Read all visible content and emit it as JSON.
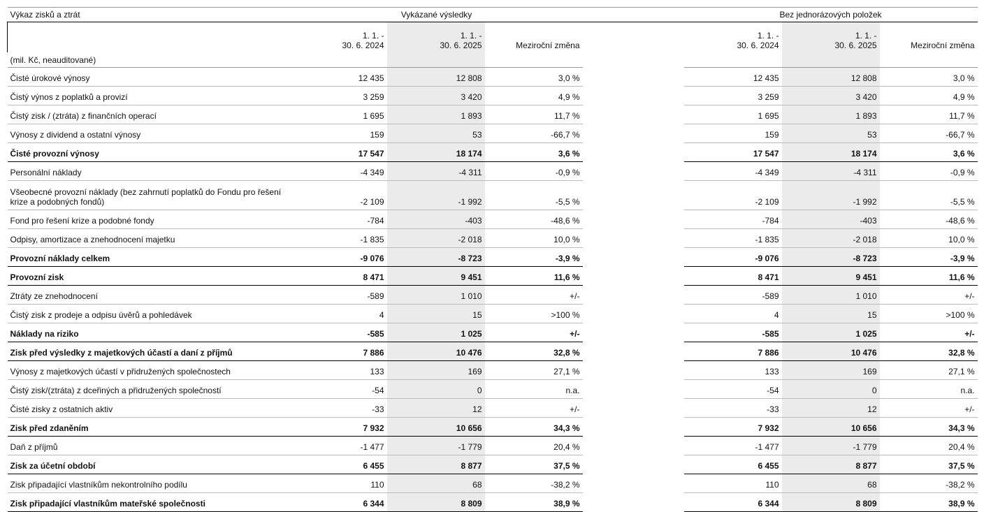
{
  "header": {
    "title": "Výkaz zisků a ztrát",
    "group1": "Vykázané výsledky",
    "group2": "Bez jednorázových položek"
  },
  "columns": [
    {
      "lines": [
        "1. 1. -",
        "30. 6. 2024"
      ]
    },
    {
      "lines": [
        "1. 1. -",
        "30. 6. 2025"
      ]
    },
    {
      "lines": [
        "Meziroční změna"
      ]
    },
    {
      "lines": [
        "1. 1. -",
        "30. 6. 2024"
      ]
    },
    {
      "lines": [
        "1. 1. -",
        "30. 6. 2025"
      ]
    },
    {
      "lines": [
        "Meziroční změna"
      ]
    }
  ],
  "unit_note": "(mil. Kč, neauditované)",
  "rows": [
    {
      "label": [
        "Čisté úrokové výnosy"
      ],
      "values": [
        "12 435",
        "12 808",
        "3,0 %",
        "12 435",
        "12 808",
        "3,0 %"
      ],
      "bold": false
    },
    {
      "label": [
        "Čistý výnos z poplatků a provizí"
      ],
      "values": [
        "3 259",
        "3 420",
        "4,9 %",
        "3 259",
        "3 420",
        "4,9 %"
      ],
      "bold": false
    },
    {
      "label": [
        "Čistý zisk / (ztráta) z finančních operací"
      ],
      "values": [
        "1 695",
        "1 893",
        "11,7 %",
        "1 695",
        "1 893",
        "11,7 %"
      ],
      "bold": false
    },
    {
      "label": [
        "Výnosy z dividend a ostatní výnosy"
      ],
      "values": [
        "159",
        "53",
        "-66,7 %",
        "159",
        "53",
        "-66,7 %"
      ],
      "bold": false
    },
    {
      "label": [
        "Čisté provozní výnosy"
      ],
      "values": [
        "17 547",
        "18 174",
        "3,6 %",
        "17 547",
        "18 174",
        "3,6 %"
      ],
      "bold": true
    },
    {
      "label": [
        "Personální náklady"
      ],
      "values": [
        "-4 349",
        "-4 311",
        "-0,9 %",
        "-4 349",
        "-4 311",
        "-0,9 %"
      ],
      "bold": false
    },
    {
      "label": [
        "Všeobecné provozní náklady (bez zahrnutí poplatků do Fondu pro řešení",
        "krize a podobných fondů)"
      ],
      "values": [
        "-2 109",
        "-1 992",
        "-5,5 %",
        "-2 109",
        "-1 992",
        "-5,5 %"
      ],
      "bold": false
    },
    {
      "label": [
        "Fond pro řešení krize a podobné fondy"
      ],
      "values": [
        "-784",
        "-403",
        "-48,6 %",
        "-784",
        "-403",
        "-48,6 %"
      ],
      "bold": false
    },
    {
      "label": [
        "Odpisy, amortizace a znehodnocení majetku"
      ],
      "values": [
        "-1 835",
        "-2 018",
        "10,0 %",
        "-1 835",
        "-2 018",
        "10,0 %"
      ],
      "bold": false
    },
    {
      "label": [
        "Provozní náklady celkem"
      ],
      "values": [
        "-9 076",
        "-8 723",
        "-3,9 %",
        "-9 076",
        "-8 723",
        "-3,9 %"
      ],
      "bold": true
    },
    {
      "label": [
        "Provozní zisk"
      ],
      "values": [
        "8 471",
        "9 451",
        "11,6 %",
        "8 471",
        "9 451",
        "11,6 %"
      ],
      "bold": true
    },
    {
      "label": [
        "Ztráty ze znehodnocení"
      ],
      "values": [
        "-589",
        "1 010",
        "+/-",
        "-589",
        "1 010",
        "+/-"
      ],
      "bold": false
    },
    {
      "label": [
        "Čistý zisk z prodeje a odpisu úvěrů a pohledávek"
      ],
      "values": [
        "4",
        "15",
        ">100 %",
        "4",
        "15",
        ">100 %"
      ],
      "bold": false
    },
    {
      "label": [
        "Náklady na riziko"
      ],
      "values": [
        "-585",
        "1 025",
        "+/-",
        "-585",
        "1 025",
        "+/-"
      ],
      "bold": true
    },
    {
      "label": [
        "Zisk před výsledky z majetkových účastí a daní z příjmů"
      ],
      "values": [
        "7 886",
        "10 476",
        "32,8 %",
        "7 886",
        "10 476",
        "32,8 %"
      ],
      "bold": true
    },
    {
      "label": [
        "Výnosy z majetkových účastí v přidružených společnostech"
      ],
      "values": [
        "133",
        "169",
        "27,1 %",
        "133",
        "169",
        "27,1 %"
      ],
      "bold": false
    },
    {
      "label": [
        "Čistý zisk/(ztráta) z dceřiných a přidružených společností"
      ],
      "values": [
        "-54",
        "0",
        "n.a.",
        "-54",
        "0",
        "n.a."
      ],
      "bold": false
    },
    {
      "label": [
        "Čisté zisky z ostatních aktiv"
      ],
      "values": [
        "-33",
        "12",
        "+/-",
        "-33",
        "12",
        "+/-"
      ],
      "bold": false
    },
    {
      "label": [
        "Zisk před zdaněním"
      ],
      "values": [
        "7 932",
        "10 656",
        "34,3 %",
        "7 932",
        "10 656",
        "34,3 %"
      ],
      "bold": true
    },
    {
      "label": [
        "Daň z příjmů"
      ],
      "values": [
        "-1 477",
        "-1 779",
        "20,4 %",
        "-1 477",
        "-1 779",
        "20,4 %"
      ],
      "bold": false
    },
    {
      "label": [
        "Zisk za účetní období"
      ],
      "values": [
        "6 455",
        "8 877",
        "37,5 %",
        "6 455",
        "8 877",
        "37,5 %"
      ],
      "bold": true
    },
    {
      "label": [
        "Zisk připadající vlastníkům nekontrolního podílu"
      ],
      "values": [
        "110",
        "68",
        "-38,2 %",
        "110",
        "68",
        "-38,2 %"
      ],
      "bold": false
    },
    {
      "label": [
        "Zisk připadající vlastníkům mateřské společnosti"
      ],
      "values": [
        "6 344",
        "8 809",
        "38,9 %",
        "6 344",
        "8 809",
        "38,9 %"
      ],
      "bold": true
    }
  ]
}
